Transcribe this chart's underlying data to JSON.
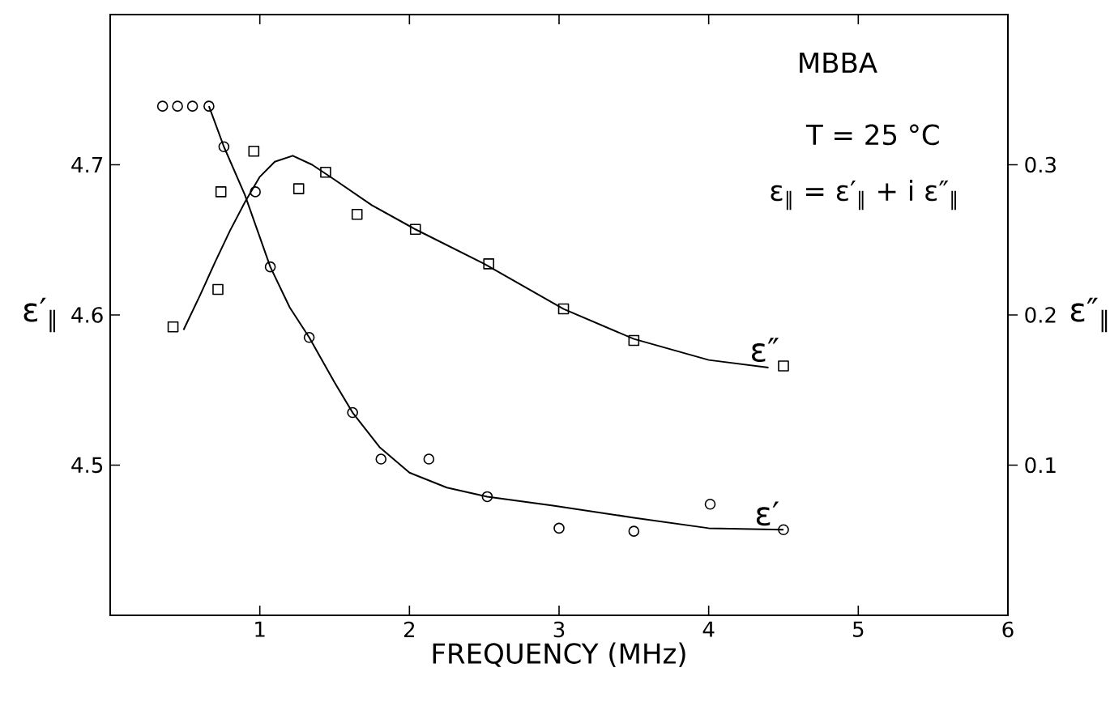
{
  "chart_data": {
    "type": "scatter",
    "xlabel": "FREQUENCY (MHz)",
    "ylabel": "ε′$_{∥}$",
    "y2label": "ε″$_{∥}$",
    "annotations": [
      "MBBA",
      "T = 25 °C",
      "ε$_{∥}$ = ε′$_{∥}$ + i ε″$_{∥}$"
    ],
    "xlim": [
      0,
      6
    ],
    "xticks": [
      1,
      2,
      3,
      4,
      5,
      6
    ],
    "ylim": [
      4.4,
      4.8
    ],
    "yticks": [
      4.5,
      4.6,
      4.7
    ],
    "y2lim": [
      0,
      0.4
    ],
    "y2ticks": [
      0.1,
      0.2,
      0.3
    ],
    "series": [
      {
        "name": "ε′",
        "marker": "circle",
        "color": "#000000",
        "x": [
          0.35,
          0.45,
          0.55,
          0.66,
          0.76,
          0.97,
          1.07,
          1.33,
          1.62,
          1.81,
          2.13,
          2.52,
          3.0,
          3.5,
          4.01,
          4.5
        ],
        "values": [
          4.739,
          4.739,
          4.739,
          4.739,
          4.712,
          4.682,
          4.632,
          4.585,
          4.535,
          4.504,
          4.504,
          4.479,
          4.458,
          4.456,
          4.474,
          4.457
        ]
      },
      {
        "type": "line",
        "marker": "none",
        "color": "#000000",
        "x": [
          0.66,
          0.76,
          0.9,
          1.07,
          1.2,
          1.33,
          1.5,
          1.62,
          1.8,
          2.0,
          2.25,
          2.52,
          2.96,
          3.5,
          4.0,
          4.5
        ],
        "values": [
          4.739,
          4.712,
          4.68,
          4.632,
          4.605,
          4.585,
          4.555,
          4.535,
          4.512,
          4.495,
          4.485,
          4.479,
          4.473,
          4.465,
          4.458,
          4.457
        ]
      },
      {
        "name": "ε″",
        "marker": "square",
        "axis": "y2",
        "color": "#000000",
        "x": [
          0.42,
          0.72,
          0.74,
          0.96,
          1.26,
          1.44,
          1.65,
          2.04,
          2.53,
          3.03,
          3.5,
          4.5
        ],
        "values": [
          0.192,
          0.217,
          0.282,
          0.309,
          0.284,
          0.295,
          0.267,
          0.257,
          0.234,
          0.204,
          0.183,
          0.166
        ]
      },
      {
        "type": "line",
        "marker": "none",
        "axis": "y2",
        "color": "#000000",
        "x": [
          0.49,
          0.6,
          0.7,
          0.8,
          0.9,
          1.0,
          1.1,
          1.22,
          1.35,
          1.5,
          1.75,
          2.04,
          2.5,
          3.03,
          3.5,
          4.0,
          4.4
        ],
        "values": [
          0.19,
          0.213,
          0.235,
          0.256,
          0.275,
          0.292,
          0.302,
          0.306,
          0.3,
          0.29,
          0.273,
          0.257,
          0.234,
          0.204,
          0.184,
          0.17,
          0.165
        ]
      }
    ]
  }
}
